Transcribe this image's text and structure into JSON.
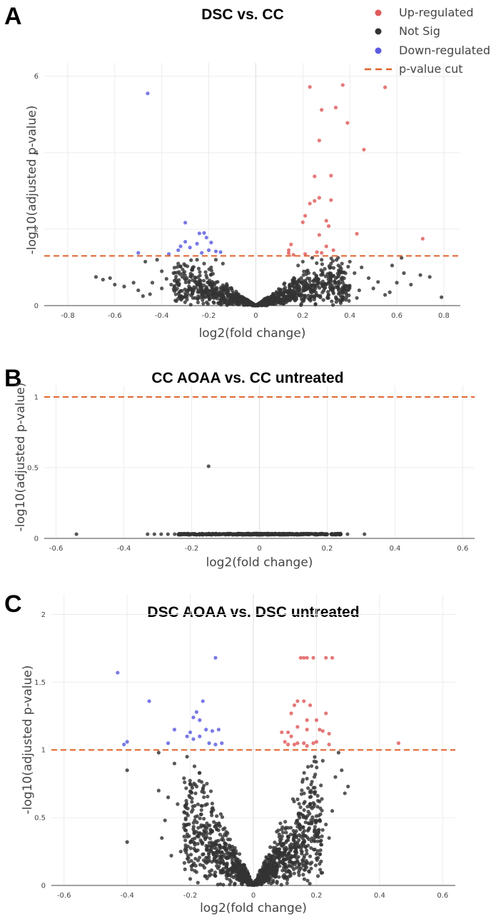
{
  "legend": {
    "placement": "top-right",
    "items": [
      {
        "label": "Up-regulated",
        "color": "#e05a5a",
        "kind": "dot"
      },
      {
        "label": "Not Sig",
        "color": "#333333",
        "kind": "dot"
      },
      {
        "label": "Down-regulated",
        "color": "#5b5be0",
        "kind": "dot"
      },
      {
        "label": "p-value cut",
        "color": "#e0622a",
        "kind": "dash"
      }
    ]
  },
  "chart_data": [
    {
      "type": "scatter",
      "panel": "A",
      "title": "DSC vs. CC",
      "xlabel": "log2(fold change)",
      "ylabel": "-log10(adjusted p-value)",
      "xlim": [
        -0.9,
        0.87
      ],
      "ylim": [
        0,
        6.35
      ],
      "xticks": [
        "-0.8",
        "-0.6",
        "-0.4",
        "-0.2",
        "0",
        "0.2",
        "0.4",
        "0.6",
        "0.8"
      ],
      "xtick_values": [
        -0.8,
        -0.6,
        -0.4,
        -0.2,
        0,
        0.2,
        0.4,
        0.6,
        0.8
      ],
      "yticks": [
        "0",
        "2",
        "4",
        "6"
      ],
      "ytick_values": [
        0,
        2,
        4,
        6
      ],
      "grid": true,
      "pvalue_cut": 1.3,
      "series": [
        {
          "name": "Up-regulated",
          "color": "#e05a5a",
          "points": [
            [
              0.23,
              5.72
            ],
            [
              0.37,
              5.77
            ],
            [
              0.55,
              5.71
            ],
            [
              0.34,
              5.18
            ],
            [
              0.28,
              5.12
            ],
            [
              0.39,
              4.78
            ],
            [
              0.27,
              4.32
            ],
            [
              0.46,
              4.08
            ],
            [
              0.25,
              3.38
            ],
            [
              0.32,
              3.4
            ],
            [
              0.27,
              2.82
            ],
            [
              0.25,
              2.74
            ],
            [
              0.32,
              2.76
            ],
            [
              0.23,
              2.67
            ],
            [
              0.21,
              2.35
            ],
            [
              0.3,
              2.22
            ],
            [
              0.2,
              2.18
            ],
            [
              0.31,
              2.08
            ],
            [
              0.43,
              1.88
            ],
            [
              0.27,
              1.85
            ],
            [
              0.71,
              1.75
            ],
            [
              0.3,
              1.55
            ],
            [
              0.15,
              1.6
            ],
            [
              0.14,
              1.45
            ],
            [
              0.33,
              1.45
            ],
            [
              0.14,
              1.37
            ],
            [
              0.16,
              1.33
            ],
            [
              0.21,
              1.35
            ],
            [
              0.26,
              1.4
            ],
            [
              0.28,
              1.38
            ]
          ]
        },
        {
          "name": "Down-regulated",
          "color": "#5b5be0",
          "points": [
            [
              -0.46,
              5.55
            ],
            [
              -0.3,
              2.17
            ],
            [
              -0.24,
              1.89
            ],
            [
              -0.22,
              1.9
            ],
            [
              -0.21,
              1.78
            ],
            [
              -0.19,
              1.65
            ],
            [
              -0.3,
              1.67
            ],
            [
              -0.25,
              1.62
            ],
            [
              -0.28,
              1.52
            ],
            [
              -0.32,
              1.55
            ],
            [
              -0.2,
              1.45
            ],
            [
              -0.17,
              1.42
            ],
            [
              -0.15,
              1.4
            ],
            [
              -0.33,
              1.45
            ],
            [
              -0.37,
              1.35
            ],
            [
              -0.5,
              1.38
            ],
            [
              -0.23,
              1.38
            ]
          ]
        },
        {
          "name": "Not Sig",
          "color": "#333333",
          "points": [
            [
              -0.68,
              0.75
            ],
            [
              -0.65,
              0.68
            ],
            [
              -0.6,
              0.55
            ],
            [
              -0.62,
              0.72
            ],
            [
              -0.56,
              0.5
            ],
            [
              -0.52,
              0.6
            ],
            [
              -0.5,
              0.4
            ],
            [
              -0.45,
              0.3
            ],
            [
              -0.48,
              0.25
            ],
            [
              -0.4,
              0.9
            ],
            [
              -0.38,
              0.7
            ],
            [
              -0.42,
              1.2
            ],
            [
              -0.47,
              1.15
            ],
            [
              -0.36,
              0.55
            ],
            [
              -0.33,
              1.1
            ],
            [
              0.62,
              1.25
            ],
            [
              0.58,
              1.05
            ],
            [
              0.63,
              0.85
            ],
            [
              0.7,
              0.8
            ],
            [
              0.74,
              0.75
            ],
            [
              0.66,
              0.55
            ],
            [
              0.57,
              0.35
            ],
            [
              0.55,
              0.28
            ],
            [
              0.79,
              0.22
            ],
            [
              0.52,
              0.62
            ],
            [
              0.48,
              0.72
            ],
            [
              0.45,
              1.0
            ],
            [
              0.42,
              0.85
            ],
            [
              0.4,
              1.15
            ],
            [
              0.37,
              0.6
            ],
            [
              0.5,
              0.45
            ],
            [
              0.35,
              1.25
            ],
            [
              0.32,
              1.1
            ],
            [
              0.28,
              1.2
            ],
            [
              0.24,
              1.25
            ],
            [
              0.2,
              1.15
            ],
            [
              0.18,
              1.05
            ],
            [
              -0.3,
              1.05
            ],
            [
              -0.27,
              0.95
            ],
            [
              -0.25,
              1.2
            ],
            [
              -0.22,
              1.1
            ],
            [
              -0.19,
              1.0
            ],
            [
              -0.17,
              1.2
            ],
            [
              -0.14,
              1.1
            ],
            [
              -0.35,
              0.85
            ],
            [
              -0.44,
              0.6
            ],
            [
              -0.4,
              0.45
            ],
            [
              0.6,
              0.6
            ],
            [
              0.44,
              0.4
            ],
            [
              0.43,
              0.2
            ]
          ]
        }
      ],
      "generated_clouds": [
        {
          "color": "#333333",
          "count": 650,
          "side": "up",
          "x_min": 0.003,
          "x_max": 0.4,
          "slope": 5.0,
          "y_max": 1.28,
          "seed": 11
        },
        {
          "color": "#333333",
          "count": 550,
          "side": "down",
          "x_min": 0.003,
          "x_max": 0.35,
          "slope": 5.0,
          "y_max": 1.28,
          "seed": 23
        }
      ]
    },
    {
      "type": "scatter",
      "panel": "B",
      "title": "CC AOAA vs. CC untreated",
      "xlabel": "log2(fold change)",
      "ylabel": "-log10(adjusted p-value)",
      "xlim": [
        -0.635,
        0.635
      ],
      "ylim": [
        0,
        1.08
      ],
      "xticks": [
        "-0.6",
        "-0.4",
        "-0.2",
        "0",
        "0.2",
        "0.4",
        "0.6"
      ],
      "xtick_values": [
        -0.6,
        -0.4,
        -0.2,
        0,
        0.2,
        0.4,
        0.6
      ],
      "yticks": [
        "0",
        "0.5",
        "1"
      ],
      "ytick_values": [
        0,
        0.5,
        1
      ],
      "grid": true,
      "pvalue_cut": 1.0,
      "series": [
        {
          "name": "Not Sig",
          "color": "#333333",
          "points": [
            [
              -0.15,
              0.51
            ],
            [
              -0.54,
              0.03
            ],
            [
              0.31,
              0.03
            ],
            [
              -0.33,
              0.03
            ],
            [
              -0.31,
              0.03
            ],
            [
              -0.29,
              0.03
            ],
            [
              -0.27,
              0.03
            ],
            [
              0.19,
              0.03
            ],
            [
              0.22,
              0.03
            ],
            [
              0.24,
              0.03
            ],
            [
              0.26,
              0.03
            ],
            [
              -0.25,
              0.03
            ],
            [
              0.17,
              0.03
            ]
          ]
        }
      ],
      "generated_clouds": [
        {
          "color": "#333333",
          "count": 600,
          "side": "flat",
          "x_min": 0.002,
          "x_max": 0.24,
          "y_base": 0.03,
          "y_jitter": 0.004,
          "seed": 37
        }
      ]
    },
    {
      "type": "scatter",
      "panel": "C",
      "title": "DSC AOAA vs. DSC untreated",
      "xlabel": "log2(fold change)",
      "ylabel": "-log10(adjusted p-value)",
      "xlim": [
        -0.64,
        0.64
      ],
      "ylim": [
        0,
        2.15
      ],
      "xticks": [
        "-0.6",
        "-0.4",
        "-0.2",
        "0",
        "0.2",
        "0.4",
        "0.6"
      ],
      "xtick_values": [
        -0.6,
        -0.4,
        -0.2,
        0,
        0.2,
        0.4,
        0.6
      ],
      "yticks": [
        "0",
        "0.5",
        "1",
        "1.5",
        "2"
      ],
      "ytick_values": [
        0,
        0.5,
        1,
        1.5,
        2
      ],
      "grid": true,
      "pvalue_cut": 1.0,
      "series": [
        {
          "name": "Up-regulated",
          "color": "#e05a5a",
          "points": [
            [
              0.15,
              1.68
            ],
            [
              0.17,
              1.68
            ],
            [
              0.19,
              1.68
            ],
            [
              0.23,
              1.68
            ],
            [
              0.25,
              1.68
            ],
            [
              0.16,
              1.68
            ],
            [
              0.13,
              1.33
            ],
            [
              0.14,
              1.36
            ],
            [
              0.16,
              1.36
            ],
            [
              0.18,
              1.33
            ],
            [
              0.12,
              1.27
            ],
            [
              0.23,
              1.27
            ],
            [
              0.17,
              1.22
            ],
            [
              0.2,
              1.22
            ],
            [
              0.14,
              1.17
            ],
            [
              0.17,
              1.15
            ],
            [
              0.21,
              1.15
            ],
            [
              0.22,
              1.14
            ],
            [
              0.09,
              1.13
            ],
            [
              0.11,
              1.13
            ],
            [
              0.24,
              1.12
            ],
            [
              0.1,
              1.06
            ],
            [
              0.14,
              1.05
            ],
            [
              0.16,
              1.05
            ],
            [
              0.19,
              1.05
            ],
            [
              0.2,
              1.06
            ],
            [
              0.13,
              1.04
            ],
            [
              0.11,
              1.04
            ],
            [
              0.46,
              1.05
            ],
            [
              0.24,
              1.04
            ],
            [
              0.17,
              1.03
            ],
            [
              0.12,
              1.1
            ]
          ]
        },
        {
          "name": "Down-regulated",
          "color": "#5b5be0",
          "points": [
            [
              -0.43,
              1.57
            ],
            [
              -0.12,
              1.68
            ],
            [
              -0.33,
              1.36
            ],
            [
              -0.16,
              1.36
            ],
            [
              -0.18,
              1.28
            ],
            [
              -0.17,
              1.22
            ],
            [
              -0.19,
              1.24
            ],
            [
              -0.25,
              1.15
            ],
            [
              -0.15,
              1.15
            ],
            [
              -0.11,
              1.15
            ],
            [
              -0.13,
              1.14
            ],
            [
              -0.2,
              1.13
            ],
            [
              -0.17,
              1.1
            ],
            [
              -0.21,
              1.1
            ],
            [
              -0.14,
              1.05
            ],
            [
              -0.1,
              1.05
            ],
            [
              -0.12,
              1.04
            ],
            [
              -0.27,
              1.05
            ],
            [
              -0.4,
              1.06
            ],
            [
              -0.41,
              1.04
            ],
            [
              -0.19,
              1.08
            ]
          ]
        },
        {
          "name": "Not Sig",
          "color": "#333333",
          "points": [
            [
              -0.4,
              0.85
            ],
            [
              -0.4,
              0.32
            ],
            [
              -0.3,
              0.98
            ],
            [
              -0.3,
              0.7
            ],
            [
              -0.28,
              0.48
            ],
            [
              -0.27,
              0.65
            ],
            [
              -0.29,
              0.35
            ],
            [
              -0.25,
              0.9
            ],
            [
              -0.24,
              0.6
            ],
            [
              -0.22,
              0.45
            ],
            [
              -0.23,
              0.25
            ],
            [
              -0.26,
              0.22
            ],
            [
              0.3,
              0.73
            ],
            [
              0.29,
              0.68
            ],
            [
              0.27,
              0.98
            ],
            [
              0.26,
              0.8
            ],
            [
              0.25,
              0.55
            ],
            [
              0.24,
              0.35
            ],
            [
              0.23,
              0.45
            ],
            [
              0.2,
              0.2
            ],
            [
              0.28,
              0.85
            ],
            [
              -0.21,
              0.95
            ],
            [
              -0.2,
              0.75
            ],
            [
              0.22,
              0.92
            ],
            [
              0.21,
              0.62
            ]
          ]
        }
      ],
      "generated_clouds": [
        {
          "color": "#333333",
          "count": 750,
          "side": "up",
          "x_min": 0.001,
          "x_max": 0.22,
          "slope": 5.6,
          "y_max": 0.985,
          "seed": 51
        },
        {
          "color": "#333333",
          "count": 700,
          "side": "down",
          "x_min": 0.001,
          "x_max": 0.22,
          "slope": 5.6,
          "y_max": 0.985,
          "seed": 67
        }
      ]
    }
  ]
}
